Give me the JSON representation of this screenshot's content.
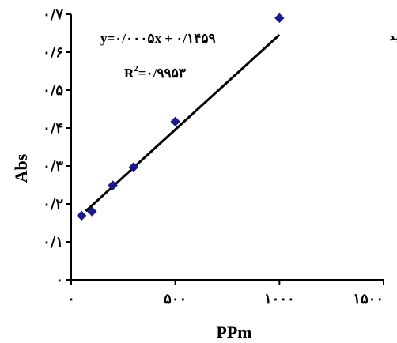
{
  "chart_data": {
    "type": "scatter",
    "series": [
      {
        "name": "گالیک اسید",
        "color": "#1a1a8c",
        "marker": "diamond",
        "points": [
          {
            "x": 50,
            "y": 0.169
          },
          {
            "x": 100,
            "y": 0.18
          },
          {
            "x": 200,
            "y": 0.249
          },
          {
            "x": 300,
            "y": 0.297
          },
          {
            "x": 500,
            "y": 0.417
          },
          {
            "x": 1000,
            "y": 0.69
          }
        ]
      }
    ],
    "trendline": {
      "color": "#000000",
      "slope": 0.0005,
      "intercept": 0.1459,
      "x_range": [
        70,
        1000
      ],
      "equation_text": "y=۰/۰۰۰۵x + ۰/۱۴۵۹",
      "r2_prefix": "R",
      "r2_value_text": "=۰/۹۹۵۳"
    },
    "xlabel": "PPm",
    "ylabel": "Abs",
    "xlim": [
      0,
      1500
    ],
    "ylim": [
      0,
      0.7
    ],
    "x_ticks": [
      {
        "value": 0,
        "label": "۰"
      },
      {
        "value": 500,
        "label": "۵۰۰"
      },
      {
        "value": 1000,
        "label": "۱۰۰۰"
      },
      {
        "value": 1500,
        "label": "۱۵۰۰"
      }
    ],
    "y_ticks": [
      {
        "value": 0,
        "label": "۰"
      },
      {
        "value": 0.1,
        "label": "۰/۱"
      },
      {
        "value": 0.2,
        "label": "۰/۲"
      },
      {
        "value": 0.3,
        "label": "۰/۳"
      },
      {
        "value": 0.4,
        "label": "۰/۴"
      },
      {
        "value": 0.5,
        "label": "۰/۵"
      },
      {
        "value": 0.6,
        "label": "۰/۶"
      },
      {
        "value": 0.7,
        "label": "۰/۷"
      }
    ],
    "legend_label": "گالیک اسید",
    "legend_position": "top-right",
    "grid": false
  }
}
